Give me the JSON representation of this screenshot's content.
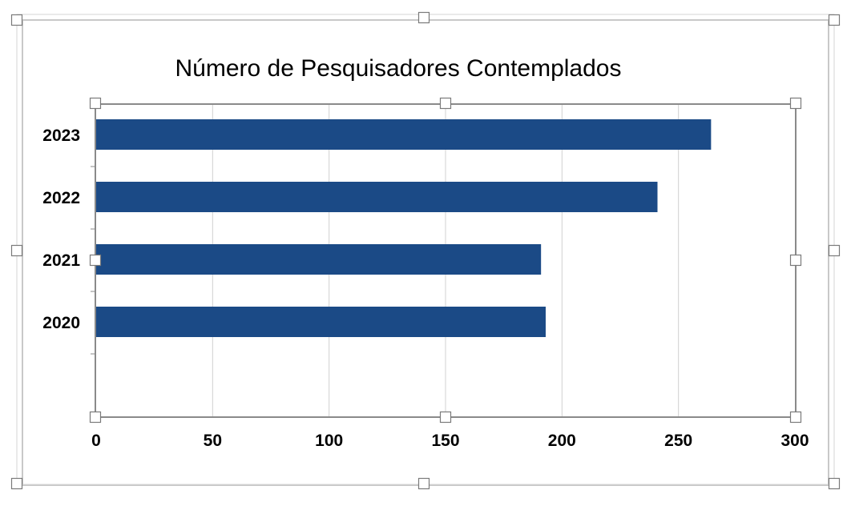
{
  "chart_data": {
    "type": "bar",
    "orientation": "horizontal",
    "title": "Número de Pesquisadores Contemplados",
    "categories": [
      "2020",
      "2021",
      "2022",
      "2023"
    ],
    "values": [
      193,
      191,
      241,
      264
    ],
    "xlim": [
      0,
      300
    ],
    "x_ticks": [
      "0",
      "50",
      "100",
      "150",
      "200",
      "250",
      "300"
    ],
    "grid": "vertical",
    "bar_color": "#1b4a86",
    "selected": true
  }
}
